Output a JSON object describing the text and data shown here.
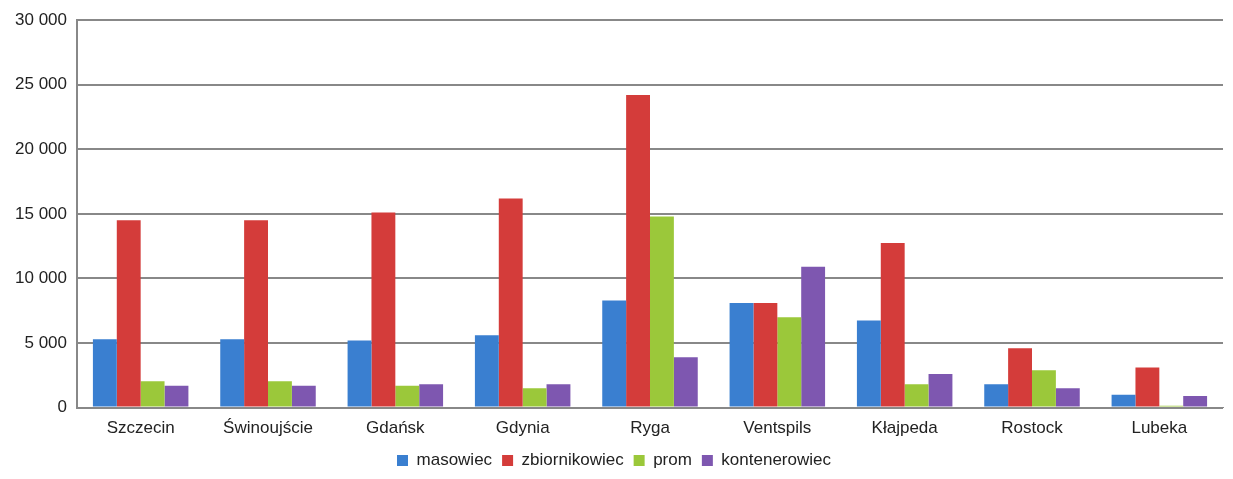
{
  "chart_data": {
    "type": "bar",
    "categories": [
      "Szczecin",
      "Świnoujście",
      "Gdańsk",
      "Gdynia",
      "Ryga",
      "Ventspils",
      "Kłajpeda",
      "Rostock",
      "Lubeka"
    ],
    "series": [
      {
        "name": "masowiec",
        "color": "#3a7fd0",
        "values": [
          5300,
          5300,
          5200,
          5600,
          8300,
          8100,
          6750,
          1800,
          1000
        ]
      },
      {
        "name": "zbiornikowiec",
        "color": "#d43c3a",
        "values": [
          14500,
          14500,
          15100,
          16200,
          24200,
          8100,
          12750,
          4600,
          3100
        ]
      },
      {
        "name": "prom",
        "color": "#9bc83a",
        "values": [
          2050,
          2050,
          1700,
          1500,
          14800,
          7000,
          1800,
          2900,
          150
        ]
      },
      {
        "name": "kontenerowiec",
        "color": "#7e57b0",
        "values": [
          1700,
          1700,
          1800,
          1800,
          3900,
          10900,
          2600,
          1500,
          900
        ]
      }
    ],
    "ylim": [
      0,
      30000
    ],
    "yticks": [
      {
        "value": 0,
        "label": "0"
      },
      {
        "value": 5000,
        "label": "5 000"
      },
      {
        "value": 10000,
        "label": "10 000"
      },
      {
        "value": 15000,
        "label": "15 000"
      },
      {
        "value": 20000,
        "label": "20 000"
      },
      {
        "value": 25000,
        "label": "25 000"
      },
      {
        "value": 30000,
        "label": "30 000"
      }
    ],
    "grid": "y",
    "legend": "bottom"
  }
}
